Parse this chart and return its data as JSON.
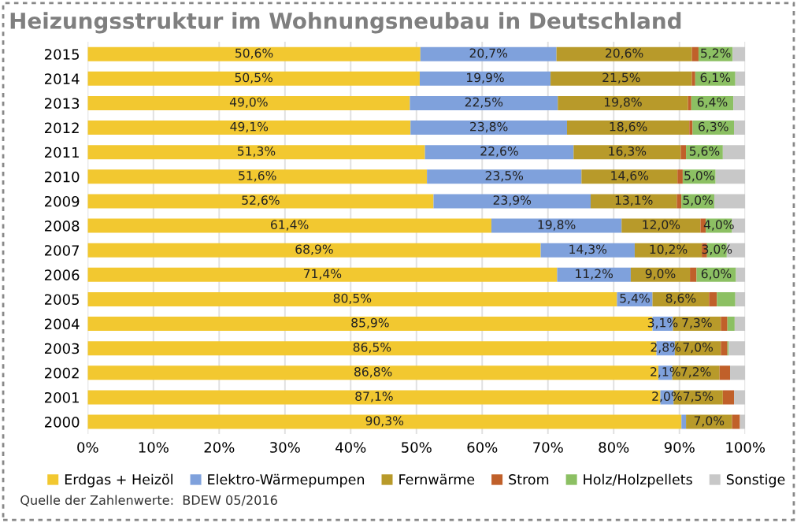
{
  "chart_data": {
    "type": "bar",
    "orientation": "horizontal",
    "stacked": true,
    "title": "Heizungsstruktur im Wohnungsneubau in Deutschland",
    "categories": [
      "2015",
      "2014",
      "2013",
      "2012",
      "2011",
      "2010",
      "2009",
      "2008",
      "2007",
      "2006",
      "2005",
      "2004",
      "2003",
      "2002",
      "2001",
      "2000"
    ],
    "series": [
      {
        "name": "Erdgas + Heizöl",
        "color": "#f2c830",
        "values": [
          50.6,
          50.5,
          49.0,
          49.1,
          51.3,
          51.6,
          52.6,
          61.4,
          68.9,
          71.4,
          80.5,
          85.9,
          86.5,
          86.8,
          87.1,
          90.3
        ],
        "value_labels": [
          "50,6%",
          "50,5%",
          "49,0%",
          "49,1%",
          "51,3%",
          "51,6%",
          "52,6%",
          "61,4%",
          "68,9%",
          "71,4%",
          "80,5%",
          "85,9%",
          "86,5%",
          "86,8%",
          "87,1%",
          "90,3%"
        ]
      },
      {
        "name": "Elektro-Wärmepumpen",
        "color": "#7fa1dc",
        "values": [
          20.7,
          19.9,
          22.5,
          23.8,
          22.6,
          23.5,
          23.9,
          19.8,
          14.3,
          11.2,
          5.4,
          3.1,
          2.8,
          2.1,
          2.0,
          0.7
        ],
        "value_labels": [
          "20,7%",
          "19,9%",
          "22,5%",
          "23,8%",
          "22,6%",
          "23,5%",
          "23,9%",
          "19,8%",
          "14,3%",
          "11,2%",
          "5,4%",
          "3,1%",
          "2,8%",
          "2,1%",
          "2,0%",
          null
        ]
      },
      {
        "name": "Fernwärme",
        "color": "#b89a2a",
        "values": [
          20.6,
          21.5,
          19.8,
          18.6,
          16.3,
          14.6,
          13.1,
          12.0,
          10.2,
          9.0,
          8.6,
          7.3,
          7.0,
          7.2,
          7.5,
          7.0
        ],
        "value_labels": [
          "20,6%",
          "21,5%",
          "19,8%",
          "18,6%",
          "16,3%",
          "14,6%",
          "13,1%",
          "12,0%",
          "10,2%",
          "9,0%",
          "8,6%",
          "7,3%",
          "7,0%",
          "7,2%",
          "7,5%",
          "7,0%"
        ]
      },
      {
        "name": "Strom",
        "color": "#c0602a",
        "values": [
          1.0,
          0.5,
          0.5,
          0.5,
          0.8,
          0.8,
          0.7,
          0.8,
          0.8,
          1.0,
          1.2,
          1.0,
          1.0,
          1.6,
          1.7,
          1.2
        ]
      },
      {
        "name": "Holz/Holzpellets",
        "color": "#8cc063",
        "values": [
          5.2,
          6.1,
          6.4,
          6.3,
          5.6,
          5.0,
          5.0,
          4.0,
          3.0,
          6.0,
          2.8,
          1.1,
          0.2,
          0,
          0,
          0
        ],
        "value_labels": [
          "5,2%",
          "6,1%",
          "6,4%",
          "6,3%",
          "5,6%",
          "5,0%",
          "5,0%",
          "4,0%",
          "3,0%",
          "6,0%",
          null,
          null,
          null,
          null,
          null,
          null
        ]
      },
      {
        "name": "Sonstige",
        "color": "#c8c8c8",
        "values": [
          1.9,
          1.5,
          1.8,
          1.7,
          3.4,
          4.5,
          4.7,
          2.0,
          2.8,
          1.4,
          1.5,
          1.6,
          2.5,
          2.3,
          1.7,
          0.8
        ]
      }
    ],
    "xlim": [
      0,
      100
    ],
    "xticks": [
      {
        "value": 0,
        "label": "0%"
      },
      {
        "value": 10,
        "label": "10%"
      },
      {
        "value": 20,
        "label": "20%"
      },
      {
        "value": 30,
        "label": "30%"
      },
      {
        "value": 40,
        "label": "40%"
      },
      {
        "value": 50,
        "label": "50%"
      },
      {
        "value": 60,
        "label": "60%"
      },
      {
        "value": 70,
        "label": "70%"
      },
      {
        "value": 80,
        "label": "80%"
      },
      {
        "value": 90,
        "label": "90%"
      },
      {
        "value": 100,
        "label": "100%"
      }
    ],
    "grid": "x",
    "legend": "bottom",
    "annotations": [
      "Quelle der Zahlenwerte:  BDEW 05/2016"
    ]
  }
}
